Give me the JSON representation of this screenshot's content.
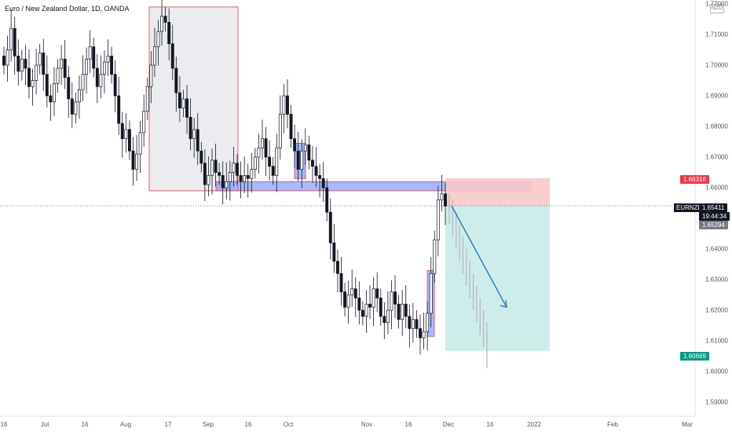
{
  "header": {
    "symbol_title": "Euro / New Zealand Dollar, 1D, OANDA",
    "currency_badge": "NZD"
  },
  "price_axis": {
    "labels": [
      "1.72000",
      "1.71000",
      "1.70000",
      "1.69000",
      "1.68000",
      "1.67000",
      "1.66000",
      "1.64000",
      "1.63000",
      "1.62000",
      "1.61000",
      "1.60000",
      "1.59000"
    ],
    "ticks": [
      1.72,
      1.71,
      1.7,
      1.69,
      1.68,
      1.67,
      1.66,
      1.64,
      1.63,
      1.62,
      1.61,
      1.6,
      1.59
    ]
  },
  "time_axis": {
    "labels": [
      "16",
      "Jul",
      "16",
      "Aug",
      "17",
      "Sep",
      "16",
      "Oct",
      "Nov",
      "16",
      "Dec",
      "16",
      "2022",
      "Feb",
      "Mar"
    ]
  },
  "tags": {
    "stop_price": "1.66316",
    "symbol": "EURNZD",
    "last_price": "1.65411",
    "countdown": "19:44:34",
    "entry_price": "1.65294",
    "target_price": "1.60669"
  },
  "colors": {
    "up": "#131722",
    "down": "#131722",
    "projection": "#b2b5be",
    "zone_blue": "#6c8cff",
    "zone_gray": "#e9eaee",
    "stop_zone": "#f7c9c9",
    "target_zone": "#c9ebe8",
    "arrow": "#2a7ab5"
  },
  "chart_data": {
    "type": "candlestick",
    "symbol": "EURNZD",
    "timeframe": "1D",
    "y_range": [
      1.5875,
      1.7225
    ],
    "candles_approx_close": [
      1.7,
      1.705,
      1.712,
      1.703,
      1.698,
      1.702,
      1.699,
      1.693,
      1.695,
      1.7,
      1.704,
      1.697,
      1.69,
      1.688,
      1.694,
      1.699,
      1.702,
      1.696,
      1.689,
      1.684,
      1.688,
      1.692,
      1.697,
      1.702,
      1.706,
      1.699,
      1.693,
      1.697,
      1.701,
      1.703,
      1.697,
      1.69,
      1.681,
      1.676,
      1.679,
      1.672,
      1.666,
      1.671,
      1.678,
      1.685,
      1.693,
      1.7,
      1.706,
      1.711,
      1.716,
      1.714,
      1.707,
      1.699,
      1.691,
      1.686,
      1.689,
      1.683,
      1.676,
      1.679,
      1.672,
      1.668,
      1.661,
      1.664,
      1.669,
      1.665,
      1.664,
      1.66,
      1.662,
      1.665,
      1.668,
      1.664,
      1.662,
      1.664,
      1.663,
      1.666,
      1.67,
      1.673,
      1.676,
      1.67,
      1.667,
      1.664,
      1.673,
      1.684,
      1.69,
      1.684,
      1.676,
      1.672,
      1.666,
      1.672,
      1.674,
      1.669,
      1.667,
      1.664,
      1.663,
      1.66,
      1.652,
      1.642,
      1.636,
      1.632,
      1.626,
      1.621,
      1.625,
      1.627,
      1.624,
      1.62,
      1.618,
      1.622,
      1.621,
      1.627,
      1.624,
      1.618,
      1.616,
      1.62,
      1.626,
      1.622,
      1.617,
      1.622,
      1.618,
      1.614,
      1.617,
      1.614,
      1.611,
      1.613,
      1.619,
      1.632,
      1.643,
      1.656,
      1.658,
      1.654
    ],
    "projection_close": [
      1.652,
      1.648,
      1.644,
      1.64,
      1.636,
      1.632,
      1.628,
      1.624,
      1.62,
      1.616,
      1.612,
      1.605
    ],
    "zones": [
      {
        "kind": "gray-box",
        "from": 1.659,
        "to": 1.719
      },
      {
        "kind": "blue-band",
        "from": 1.659,
        "to": 1.662
      },
      {
        "kind": "blue-box",
        "from": 1.663,
        "to": 1.6745
      },
      {
        "kind": "blue-box",
        "from": 1.6115,
        "to": 1.633
      },
      {
        "kind": "stop-zone",
        "from": 1.6541,
        "to": 1.6631
      },
      {
        "kind": "target-zone",
        "from": 1.6067,
        "to": 1.6541
      }
    ],
    "arrow": {
      "from": 1.6541,
      "to": 1.621
    },
    "last_price": 1.65411,
    "entry_price": 1.65294,
    "stop_price": 1.66316,
    "target_price": 1.60669
  }
}
